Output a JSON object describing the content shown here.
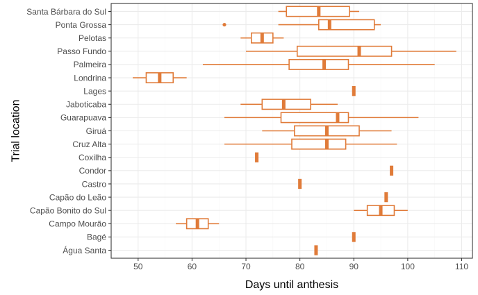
{
  "chart_data": {
    "type": "boxplot",
    "orientation": "horizontal",
    "xlabel": "Days until anthesis",
    "ylabel": "Trial location",
    "xlim": [
      45,
      112
    ],
    "xticks": [
      50,
      60,
      70,
      80,
      90,
      100,
      110
    ],
    "grid": true,
    "legend": "none",
    "color": "#E07B39",
    "categories": [
      "Santa Bárbara do Sul",
      "Ponta Grossa",
      "Pelotas",
      "Passo Fundo",
      "Palmeira",
      "Londrina",
      "Lages",
      "Jaboticaba",
      "Guarapuava",
      "Giruá",
      "Cruz Alta",
      "Coxilha",
      "Condor",
      "Castro",
      "Capão do Leão",
      "Capão Bonito do Sul",
      "Campo Mourão",
      "Bagé",
      "Água Santa"
    ],
    "boxes": [
      {
        "location": "Santa Bárbara do Sul",
        "whisker_low": 76,
        "q1": 77.5,
        "median": 83.5,
        "q3": 89.2,
        "whisker_high": 91,
        "outliers": []
      },
      {
        "location": "Ponta Grossa",
        "whisker_low": 76,
        "q1": 83.5,
        "median": 85.5,
        "q3": 93.8,
        "whisker_high": 95,
        "outliers": [
          66
        ]
      },
      {
        "location": "Pelotas",
        "whisker_low": 69,
        "q1": 71,
        "median": 73,
        "q3": 75,
        "whisker_high": 77,
        "outliers": []
      },
      {
        "location": "Passo Fundo",
        "whisker_low": 70,
        "q1": 79.5,
        "median": 91,
        "q3": 97,
        "whisker_high": 109,
        "outliers": []
      },
      {
        "location": "Palmeira",
        "whisker_low": 62,
        "q1": 78,
        "median": 84.5,
        "q3": 89,
        "whisker_high": 105,
        "outliers": []
      },
      {
        "location": "Londrina",
        "whisker_low": 49,
        "q1": 51.5,
        "median": 54,
        "q3": 56.5,
        "whisker_high": 59,
        "outliers": []
      },
      {
        "location": "Lages",
        "whisker_low": 90,
        "q1": 90,
        "median": 90,
        "q3": 90,
        "whisker_high": 90,
        "outliers": []
      },
      {
        "location": "Jaboticaba",
        "whisker_low": 69,
        "q1": 73,
        "median": 77,
        "q3": 82,
        "whisker_high": 87,
        "outliers": []
      },
      {
        "location": "Guarapuava",
        "whisker_low": 66,
        "q1": 76.5,
        "median": 87,
        "q3": 89,
        "whisker_high": 102,
        "outliers": []
      },
      {
        "location": "Giruá",
        "whisker_low": 73,
        "q1": 79,
        "median": 85,
        "q3": 91,
        "whisker_high": 97,
        "outliers": []
      },
      {
        "location": "Cruz Alta",
        "whisker_low": 66,
        "q1": 78.5,
        "median": 85,
        "q3": 88.5,
        "whisker_high": 98,
        "outliers": []
      },
      {
        "location": "Coxilha",
        "whisker_low": 72,
        "q1": 72,
        "median": 72,
        "q3": 72,
        "whisker_high": 72,
        "outliers": []
      },
      {
        "location": "Condor",
        "whisker_low": 97,
        "q1": 97,
        "median": 97,
        "q3": 97,
        "whisker_high": 97,
        "outliers": []
      },
      {
        "location": "Castro",
        "whisker_low": 80,
        "q1": 80,
        "median": 80,
        "q3": 80,
        "whisker_high": 80,
        "outliers": []
      },
      {
        "location": "Capão do Leão",
        "whisker_low": 96,
        "q1": 96,
        "median": 96,
        "q3": 96,
        "whisker_high": 96,
        "outliers": []
      },
      {
        "location": "Capão Bonito do Sul",
        "whisker_low": 90,
        "q1": 92.5,
        "median": 95,
        "q3": 97.5,
        "whisker_high": 100,
        "outliers": []
      },
      {
        "location": "Campo Mourão",
        "whisker_low": 57,
        "q1": 59,
        "median": 61,
        "q3": 63,
        "whisker_high": 65,
        "outliers": []
      },
      {
        "location": "Bagé",
        "whisker_low": 90,
        "q1": 90,
        "median": 90,
        "q3": 90,
        "whisker_high": 90,
        "outliers": []
      },
      {
        "location": "Água Santa",
        "whisker_low": 83,
        "q1": 83,
        "median": 83,
        "q3": 83,
        "whisker_high": 83,
        "outliers": []
      }
    ]
  }
}
